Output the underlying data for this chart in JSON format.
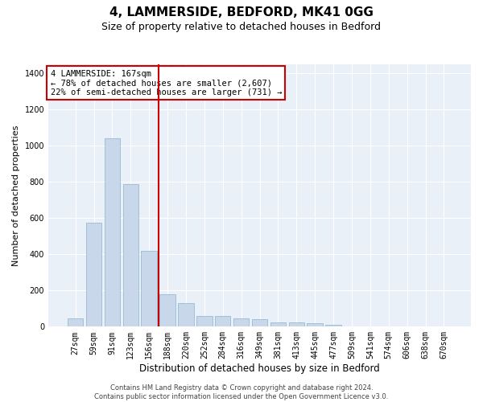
{
  "title": "4, LAMMERSIDE, BEDFORD, MK41 0GG",
  "subtitle": "Size of property relative to detached houses in Bedford",
  "xlabel": "Distribution of detached houses by size in Bedford",
  "ylabel": "Number of detached properties",
  "bar_color": "#c8d8ea",
  "bar_edge_color": "#8ab4cc",
  "background_color": "#eaf0f8",
  "grid_color": "#ffffff",
  "vline_color": "#cc0000",
  "vline_x": 4.5,
  "annotation_text": "4 LAMMERSIDE: 167sqm\n← 78% of detached houses are smaller (2,607)\n22% of semi-detached houses are larger (731) →",
  "annotation_box_color": "#ffffff",
  "annotation_box_edge": "#cc0000",
  "categories": [
    "27sqm",
    "59sqm",
    "91sqm",
    "123sqm",
    "156sqm",
    "188sqm",
    "220sqm",
    "252sqm",
    "284sqm",
    "316sqm",
    "349sqm",
    "381sqm",
    "413sqm",
    "445sqm",
    "477sqm",
    "509sqm",
    "541sqm",
    "574sqm",
    "606sqm",
    "638sqm",
    "670sqm"
  ],
  "values": [
    45,
    575,
    1040,
    790,
    420,
    180,
    130,
    60,
    60,
    45,
    40,
    25,
    25,
    18,
    10,
    0,
    0,
    0,
    0,
    0,
    0
  ],
  "ylim": [
    0,
    1450
  ],
  "yticks": [
    0,
    200,
    400,
    600,
    800,
    1000,
    1200,
    1400
  ],
  "footnote": "Contains HM Land Registry data © Crown copyright and database right 2024.\nContains public sector information licensed under the Open Government Licence v3.0.",
  "title_fontsize": 11,
  "subtitle_fontsize": 9,
  "tick_fontsize": 7,
  "ylabel_fontsize": 8,
  "xlabel_fontsize": 8.5,
  "annot_fontsize": 7.5,
  "footnote_fontsize": 6
}
